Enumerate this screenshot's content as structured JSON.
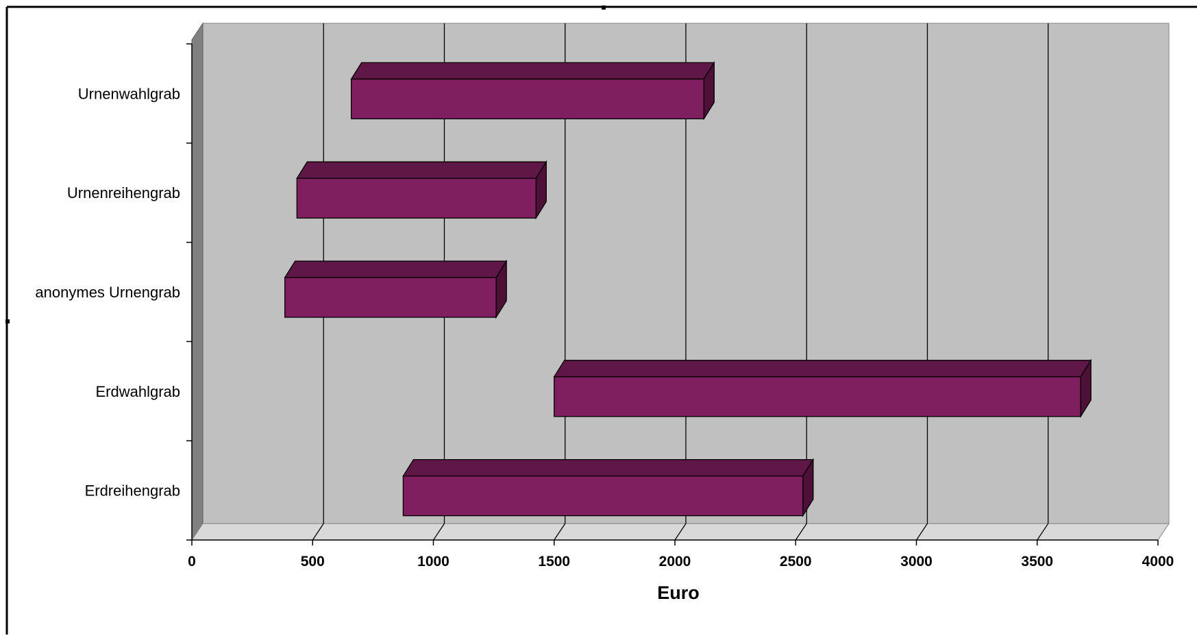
{
  "colors": {
    "plot_back": "#c0c0c0",
    "plot_top": "#d9d9d9",
    "plot_side": "#808080",
    "bar_front": "#7f1f5f",
    "bar_top": "#5f1747",
    "bar_side": "#4f1038",
    "grid": "#000000",
    "frame": "#000000"
  },
  "chart_data": {
    "type": "bar",
    "orientation": "horizontal",
    "style": "floating-range-3d",
    "title": "",
    "xlabel": "Euro",
    "ylabel": "",
    "xlim": [
      0,
      4000
    ],
    "x_ticks": [
      0,
      500,
      1000,
      1500,
      2000,
      2500,
      3000,
      3500,
      4000
    ],
    "grid": true,
    "legend": "none",
    "categories": [
      "Urnenwahlgrab",
      "Urnenreihengrab",
      "anonymes Urnengrab",
      "Erdwahlgrab",
      "Erdreihengrab"
    ],
    "ranges": [
      {
        "category": "Urnenwahlgrab",
        "min": 660,
        "max": 2120
      },
      {
        "category": "Urnenreihengrab",
        "min": 435,
        "max": 1425
      },
      {
        "category": "anonymes Urnengrab",
        "min": 385,
        "max": 1260
      },
      {
        "category": "Erdwahlgrab",
        "min": 1500,
        "max": 3680
      },
      {
        "category": "Erdreihengrab",
        "min": 875,
        "max": 2530
      }
    ]
  }
}
